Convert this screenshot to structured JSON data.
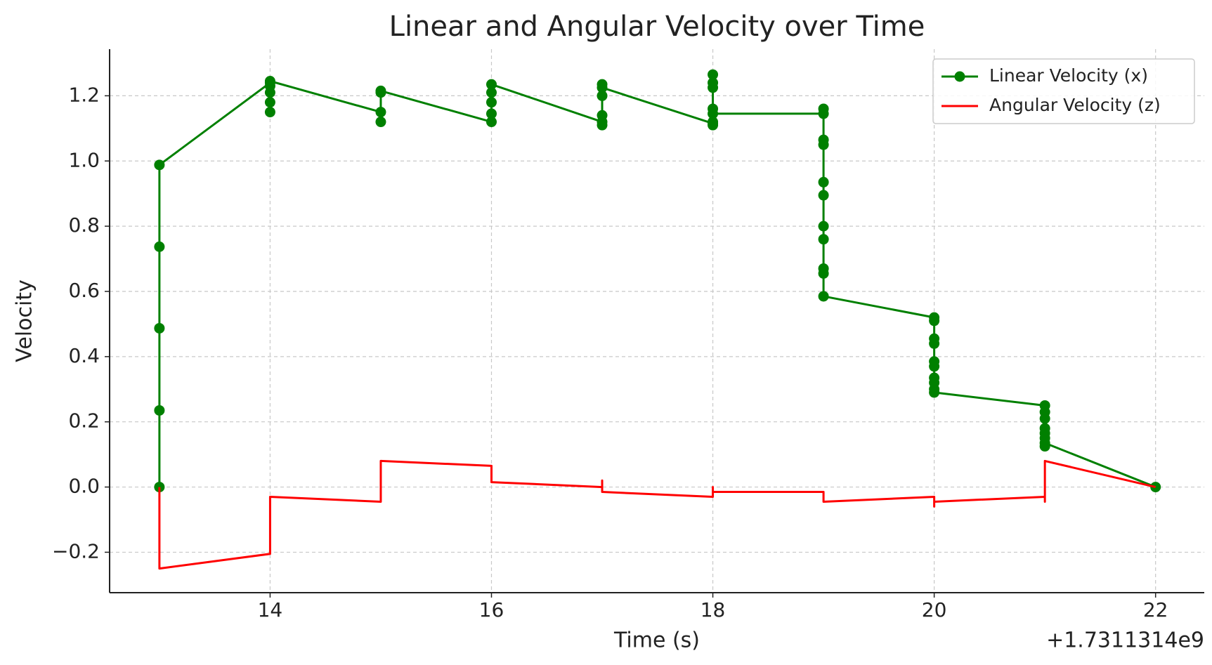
{
  "chart_data": {
    "type": "line",
    "title": "Linear and Angular Velocity over Time",
    "xlabel": "Time (s)",
    "ylabel": "Velocity",
    "x_offset_label": "+1.7311314e9",
    "xlim": [
      12.55,
      22.44
    ],
    "ylim": [
      -0.324,
      1.343
    ],
    "xticks": [
      14,
      16,
      18,
      20,
      22
    ],
    "yticks": [
      {
        "value": -0.2,
        "label": "−0.2"
      },
      {
        "value": 0.0,
        "label": "0.0"
      },
      0.2,
      0.4,
      0.6,
      0.8,
      {
        "value": 1.0,
        "label": "1.0"
      },
      1.2
    ],
    "grid": true,
    "legend": "upper right",
    "series": [
      {
        "name": "Linear Velocity (x)",
        "color": "#008000",
        "marker": true,
        "x": [
          13,
          13,
          13,
          13,
          13,
          14,
          14,
          14,
          14,
          14,
          14,
          15,
          15,
          15,
          15,
          16,
          16,
          16,
          16,
          16,
          17,
          17,
          17,
          17,
          17,
          17,
          18,
          18,
          18,
          18,
          18,
          18,
          18,
          18,
          19,
          19,
          19,
          19,
          19,
          19,
          19,
          19,
          19,
          19,
          19,
          20,
          20,
          20,
          20,
          20,
          20,
          20,
          20,
          20,
          20,
          21,
          21,
          21,
          21,
          21,
          21,
          21,
          21,
          22
        ],
        "values": [
          0,
          0.235,
          0.487,
          0.737,
          0.988,
          1.24,
          1.15,
          1.18,
          1.21,
          1.23,
          1.245,
          1.15,
          1.12,
          1.21,
          1.215,
          1.12,
          1.145,
          1.18,
          1.21,
          1.235,
          1.12,
          1.11,
          1.14,
          1.2,
          1.235,
          1.225,
          1.115,
          1.11,
          1.12,
          1.16,
          1.225,
          1.24,
          1.265,
          1.145,
          1.145,
          1.16,
          1.065,
          1.05,
          0.935,
          0.895,
          0.8,
          0.76,
          0.67,
          0.655,
          0.585,
          0.52,
          0.51,
          0.455,
          0.44,
          0.385,
          0.37,
          0.335,
          0.32,
          0.3,
          0.29,
          0.25,
          0.23,
          0.21,
          0.18,
          0.165,
          0.15,
          0.125,
          0.135,
          0
        ]
      },
      {
        "name": "Angular Velocity (z)",
        "color": "#ff0000",
        "marker": false,
        "x": [
          13,
          13,
          14,
          14,
          15,
          15,
          16,
          16,
          17,
          17,
          17,
          18,
          18,
          18,
          19,
          19,
          20,
          20,
          20,
          21,
          21,
          21,
          22
        ],
        "values": [
          0,
          -0.25,
          -0.205,
          -0.03,
          -0.045,
          0.08,
          0.065,
          0.015,
          0,
          0.02,
          -0.015,
          -0.03,
          0,
          -0.015,
          -0.015,
          -0.045,
          -0.03,
          -0.06,
          -0.045,
          -0.03,
          -0.045,
          0.08,
          0
        ]
      }
    ]
  }
}
